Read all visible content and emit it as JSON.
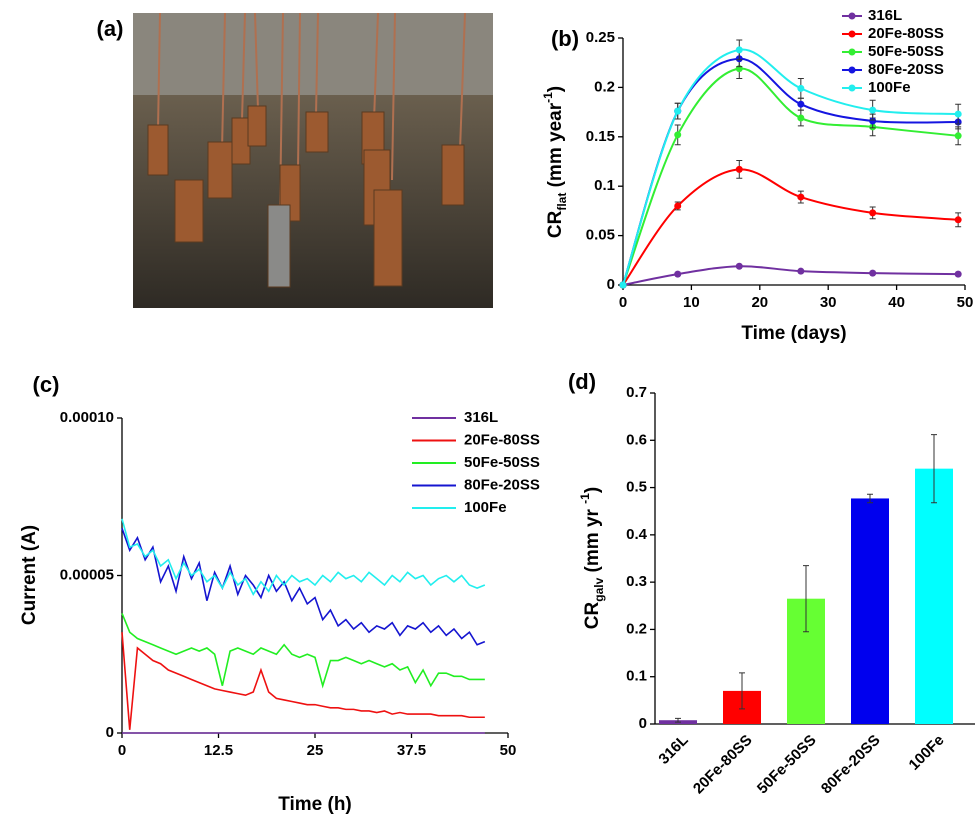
{
  "chart_data": [
    {
      "type": "image",
      "panel_label": "(a)"
    },
    {
      "type": "line",
      "panel_label": "(b)",
      "smooth": true,
      "markers": true,
      "legend": "upper right",
      "x_label": "Time (days)",
      "y_label": {
        "text": "CR",
        "sub": "flat",
        "unit": " (mm year",
        "sup": "-1",
        "close": ")"
      },
      "xlim": [
        0,
        50
      ],
      "xticks": [
        0,
        10,
        20,
        30,
        40,
        50
      ],
      "ylim": [
        0,
        0.25
      ],
      "yticks": [
        0,
        0.05,
        0.1,
        0.15,
        0.2,
        0.25
      ],
      "x": [
        0,
        8,
        17,
        26,
        36.5,
        49
      ],
      "series": [
        {
          "name": "316L",
          "color": "#7030a0",
          "values": [
            0,
            0.011,
            0.019,
            0.014,
            0.012,
            0.011
          ],
          "errors": [
            0,
            0.001,
            0.001,
            0.001,
            0.001,
            0.001
          ]
        },
        {
          "name": "20Fe-80SS",
          "color": "#ff0000",
          "values": [
            0,
            0.08,
            0.117,
            0.089,
            0.073,
            0.066
          ],
          "errors": [
            0,
            0.004,
            0.009,
            0.006,
            0.006,
            0.007
          ]
        },
        {
          "name": "50Fe-50SS",
          "color": "#33ee33",
          "values": [
            0,
            0.152,
            0.219,
            0.169,
            0.16,
            0.151
          ],
          "errors": [
            0,
            0.01,
            0.01,
            0.008,
            0.009,
            0.009
          ]
        },
        {
          "name": "80Fe-20SS",
          "color": "#1515e0",
          "values": [
            0,
            0.176,
            0.229,
            0.183,
            0.166,
            0.165
          ],
          "errors": [
            0,
            0.008,
            0.008,
            0.006,
            0.007,
            0.007
          ]
        },
        {
          "name": "100Fe",
          "color": "#22eeee",
          "values": [
            0,
            0.176,
            0.238,
            0.199,
            0.177,
            0.173
          ],
          "errors": [
            0,
            0.008,
            0.01,
            0.01,
            0.01,
            0.01
          ]
        }
      ]
    },
    {
      "type": "line",
      "panel_label": "(c)",
      "smooth": false,
      "markers": false,
      "legend": "upper right",
      "x_label": "Time (h)",
      "y_label": "Current (A)",
      "xlim": [
        0,
        50
      ],
      "xticks": [
        0,
        12.5,
        25,
        37.5,
        50
      ],
      "ylim": [
        0,
        0.0001
      ],
      "yticks": [
        0,
        5e-05,
        {
          "value": 0.0001,
          "label": "0.00010"
        }
      ],
      "x": [
        0,
        1,
        2,
        3,
        4,
        5,
        6,
        7,
        8,
        9,
        10,
        11,
        12,
        13,
        14,
        15,
        16,
        17,
        18,
        19,
        20,
        21,
        22,
        23,
        24,
        25,
        26,
        27,
        28,
        29,
        30,
        31,
        32,
        33,
        34,
        35,
        36,
        37,
        38,
        39,
        40,
        41,
        42,
        43,
        44,
        45,
        46,
        47
      ],
      "series": [
        {
          "name": "316L",
          "color": "#7030a0",
          "values": [
            0,
            0,
            0,
            0,
            0,
            0,
            0,
            0,
            0,
            0,
            0,
            0,
            0,
            0,
            0,
            0,
            0,
            0,
            0,
            0,
            0,
            0,
            0,
            0,
            0,
            0,
            0,
            0,
            0,
            0,
            0,
            0,
            0,
            0,
            0,
            0,
            0,
            0,
            0,
            0,
            0,
            0,
            0,
            0,
            0,
            0,
            0,
            0
          ]
        },
        {
          "name": "20Fe-80SS",
          "color": "#ee1111",
          "values": [
            3.2e-05,
            1e-06,
            2.7e-05,
            2.5e-05,
            2.3e-05,
            2.2e-05,
            2e-05,
            1.9e-05,
            1.8e-05,
            1.7e-05,
            1.6e-05,
            1.5e-05,
            1.4e-05,
            1.35e-05,
            1.3e-05,
            1.25e-05,
            1.2e-05,
            1.3e-05,
            2e-05,
            1.3e-05,
            1.1e-05,
            1.05e-05,
            1e-05,
            9.5e-06,
            9e-06,
            9e-06,
            8.5e-06,
            8e-06,
            8e-06,
            7.5e-06,
            7.5e-06,
            7e-06,
            7e-06,
            6.5e-06,
            7e-06,
            6e-06,
            6.5e-06,
            6e-06,
            6e-06,
            6e-06,
            6e-06,
            5.5e-06,
            5.5e-06,
            5.5e-06,
            5.5e-06,
            5e-06,
            5e-06,
            5e-06
          ]
        },
        {
          "name": "50Fe-50SS",
          "color": "#22ee22",
          "values": [
            3.8e-05,
            3.2e-05,
            3e-05,
            2.9e-05,
            2.8e-05,
            2.7e-05,
            2.6e-05,
            2.5e-05,
            2.6e-05,
            2.7e-05,
            2.6e-05,
            2.7e-05,
            2.5e-05,
            1.5e-05,
            2.6e-05,
            2.7e-05,
            2.6e-05,
            2.5e-05,
            2.7e-05,
            2.6e-05,
            2.5e-05,
            2.8e-05,
            2.5e-05,
            2.4e-05,
            2.5e-05,
            2.4e-05,
            1.5e-05,
            2.3e-05,
            2.3e-05,
            2.4e-05,
            2.3e-05,
            2.2e-05,
            2.3e-05,
            2.2e-05,
            2.1e-05,
            2.2e-05,
            2e-05,
            2.1e-05,
            1.6e-05,
            2e-05,
            1.5e-05,
            1.9e-05,
            1.9e-05,
            1.8e-05,
            1.8e-05,
            1.7e-05,
            1.7e-05,
            1.7e-05
          ]
        },
        {
          "name": "80Fe-20SS",
          "color": "#1515d0",
          "values": [
            6.5e-05,
            5.8e-05,
            6.2e-05,
            5.5e-05,
            5.9e-05,
            4.8e-05,
            5.3e-05,
            4.5e-05,
            5.6e-05,
            4.9e-05,
            5.4e-05,
            4.2e-05,
            5.1e-05,
            4.6e-05,
            5.3e-05,
            4.4e-05,
            5e-05,
            4.7e-05,
            4.3e-05,
            5e-05,
            4.5e-05,
            4.8e-05,
            4.2e-05,
            4.6e-05,
            4.1e-05,
            4.3e-05,
            3.6e-05,
            3.9e-05,
            3.4e-05,
            3.6e-05,
            3.3e-05,
            3.5e-05,
            3.2e-05,
            3.4e-05,
            3.3e-05,
            3.5e-05,
            3.1e-05,
            3.4e-05,
            3.3e-05,
            3.5e-05,
            3.2e-05,
            3.4e-05,
            3.1e-05,
            3.3e-05,
            3e-05,
            3.2e-05,
            2.8e-05,
            2.9e-05
          ]
        },
        {
          "name": "100Fe",
          "color": "#22eeee",
          "values": [
            6.8e-05,
            5.9e-05,
            6e-05,
            5.6e-05,
            5.8e-05,
            5.3e-05,
            5.5e-05,
            4.9e-05,
            5.4e-05,
            5e-05,
            5.2e-05,
            4.8e-05,
            5e-05,
            4.6e-05,
            5.1e-05,
            4.7e-05,
            4.9e-05,
            4.4e-05,
            4.8e-05,
            4.5e-05,
            5e-05,
            4.7e-05,
            5e-05,
            4.8e-05,
            4.9e-05,
            4.7e-05,
            5e-05,
            4.8e-05,
            5.1e-05,
            4.9e-05,
            5e-05,
            4.8e-05,
            5.1e-05,
            4.9e-05,
            4.7e-05,
            5e-05,
            4.8e-05,
            5.1e-05,
            4.9e-05,
            5e-05,
            4.7e-05,
            4.9e-05,
            5e-05,
            4.8e-05,
            5e-05,
            4.7e-05,
            4.6e-05,
            4.7e-05
          ]
        }
      ]
    },
    {
      "type": "bar",
      "panel_label": "(d)",
      "y_label": {
        "text": "CR",
        "sub": "galv",
        "unit": " (mm yr ",
        "sup": "-1",
        "close": ")"
      },
      "categories": [
        "316L",
        "20Fe-80SS",
        "50Fe-50SS",
        "80Fe-20SS",
        "100Fe"
      ],
      "values": [
        0.008,
        0.07,
        0.265,
        0.477,
        0.54
      ],
      "errors": [
        0.004,
        0.038,
        0.07,
        0.009,
        0.072
      ],
      "colors": [
        "#7030a0",
        "#ff0000",
        "#66ff33",
        "#0000ee",
        "#00ffff"
      ],
      "ylim": [
        0,
        0.7
      ],
      "yticks": [
        0,
        0.1,
        0.2,
        0.3,
        0.4,
        0.5,
        0.6,
        0.7
      ]
    }
  ]
}
